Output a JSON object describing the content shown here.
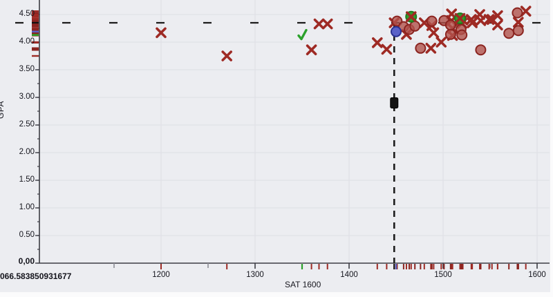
{
  "figure": {
    "bg": "#ecedf1",
    "page_bg": "#fbfbfc",
    "grid_color": "#e0e1e7",
    "axis_color": "#3c3c44",
    "minor_x_tick_color": "#8e8e96",
    "text_color": "#14141c",
    "x_marker_color": "#9e2a24",
    "circle_fill": "#b2524c",
    "circle_stroke": "#8b2420",
    "green_color": "#2ca12c",
    "green_stroke": "#1e7a1e",
    "blue_fill": "#5a62c8",
    "blue_stroke": "#2a3190",
    "reference_line_color": "#1c1c1c",
    "handle_color": "#141414"
  },
  "chart_data": {
    "type": "scatter",
    "title": "",
    "xlabel": "SAT 1600",
    "ylabel": "GPA",
    "x": {
      "label": "SAT 1600",
      "first_label": "066.583850931677",
      "ticks": [
        {
          "v": 1200,
          "t": "1200"
        },
        {
          "v": 1300,
          "t": "1300"
        },
        {
          "v": 1400,
          "t": "1400"
        },
        {
          "v": 1500,
          "t": "1500"
        },
        {
          "v": 1600,
          "t": "1600"
        }
      ],
      "minor_ticks": [
        1150,
        1250,
        1350,
        1450,
        1550
      ],
      "range": [
        1066.58,
        1613
      ]
    },
    "y": {
      "label": "GPA",
      "ticks": [
        {
          "v": 4.5,
          "t": "4.50"
        },
        {
          "v": 4.0,
          "t": "4.00"
        },
        {
          "v": 3.5,
          "t": "3.50"
        },
        {
          "v": 3.0,
          "t": "3.00"
        },
        {
          "v": 2.5,
          "t": "2.50"
        },
        {
          "v": 2.0,
          "t": "2.00"
        },
        {
          "v": 1.5,
          "t": "1.50"
        },
        {
          "v": 1.0,
          "t": "1.00"
        },
        {
          "v": 0.5,
          "t": "0.50"
        },
        {
          "v": 0.0,
          "t": "0,00",
          "bold": true
        }
      ],
      "minor_step": 0.25,
      "range": [
        0,
        4.76
      ]
    },
    "grid": {
      "x_at": [
        1200,
        1300,
        1400,
        1500,
        1600
      ],
      "y_at": [
        0.5,
        1.0,
        1.5,
        2.0,
        2.5,
        3.0,
        3.5,
        4.0,
        4.5
      ]
    },
    "series": [
      {
        "name": "observations-x",
        "marker": "x",
        "points": [
          [
            1200,
            4.17
          ],
          [
            1270,
            3.75
          ],
          [
            1360,
            3.86
          ],
          [
            1368,
            4.33
          ],
          [
            1377,
            4.33
          ],
          [
            1430,
            3.99
          ],
          [
            1440,
            3.87
          ],
          [
            1448,
            4.35
          ],
          [
            1461,
            4.14
          ],
          [
            1480,
            4.35
          ],
          [
            1487,
            3.89
          ],
          [
            1488,
            4.3
          ],
          [
            1490,
            4.17
          ],
          [
            1498,
            4.0
          ],
          [
            1509,
            4.51
          ],
          [
            1509,
            4.39
          ],
          [
            1510,
            4.25
          ],
          [
            1510,
            4.12
          ],
          [
            1521,
            4.4
          ],
          [
            1520,
            4.34
          ],
          [
            1530,
            4.41
          ],
          [
            1531,
            4.35
          ],
          [
            1539,
            4.5
          ],
          [
            1540,
            4.39
          ],
          [
            1549,
            4.41
          ],
          [
            1552,
            4.41
          ],
          [
            1558,
            4.48
          ],
          [
            1558,
            4.31
          ],
          [
            1580,
            4.36
          ],
          [
            1588,
            4.56
          ]
        ]
      },
      {
        "name": "observations-circle",
        "marker": "circle",
        "points": [
          [
            1451,
            4.38
          ],
          [
            1458,
            4.28
          ],
          [
            1464,
            4.23
          ],
          [
            1470,
            4.29
          ],
          [
            1476,
            3.89
          ],
          [
            1488,
            4.38
          ],
          [
            1501,
            4.39
          ],
          [
            1508,
            4.31
          ],
          [
            1508,
            4.14
          ],
          [
            1519,
            4.23
          ],
          [
            1520,
            4.13
          ],
          [
            1540,
            3.86
          ],
          [
            1570,
            4.16
          ],
          [
            1579,
            4.53
          ],
          [
            1580,
            4.21
          ]
        ]
      },
      {
        "name": "selected-green-circle-x",
        "marker": "green-circle-x",
        "points": [
          [
            1466,
            4.46
          ],
          [
            1518,
            4.43
          ]
        ]
      },
      {
        "name": "selected-blue-circle",
        "marker": "blue-circle",
        "points": [
          [
            1450,
            4.19
          ]
        ]
      },
      {
        "name": "selected-check",
        "marker": "check",
        "points": [
          [
            1350,
            4.13
          ]
        ]
      }
    ],
    "reference_lines": {
      "vline_x": 1448,
      "hline_y": 4.35,
      "handle": {
        "x": 1448,
        "y": 2.9
      }
    },
    "rug": {
      "x_special": [
        {
          "v": 1350,
          "color": "green"
        },
        {
          "v": 1448,
          "color": "black"
        }
      ],
      "y_special": [
        {
          "v": 4.35,
          "color": "black"
        },
        {
          "v": 4.19,
          "color": "blue"
        },
        {
          "v": 4.13,
          "color": "green"
        }
      ]
    }
  }
}
